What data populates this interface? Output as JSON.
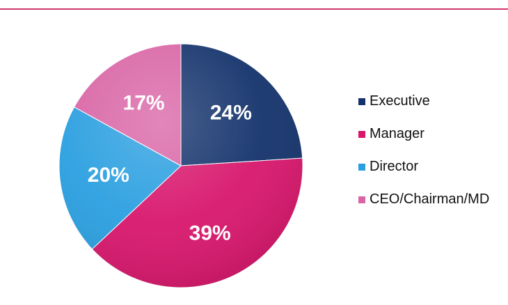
{
  "chart_data": {
    "type": "pie",
    "categories": [
      "Executive",
      "Manager",
      "Director",
      "CEO/Chairman/MD"
    ],
    "values": [
      24,
      39,
      20,
      17
    ],
    "value_labels": [
      "24%",
      "39%",
      "20%",
      "17%"
    ],
    "colors": [
      "#14336c",
      "#d8166c",
      "#2a9fe0",
      "#d965a6"
    ],
    "legend_position": "right",
    "start_angle_deg": 0,
    "direction": "clockwise"
  }
}
